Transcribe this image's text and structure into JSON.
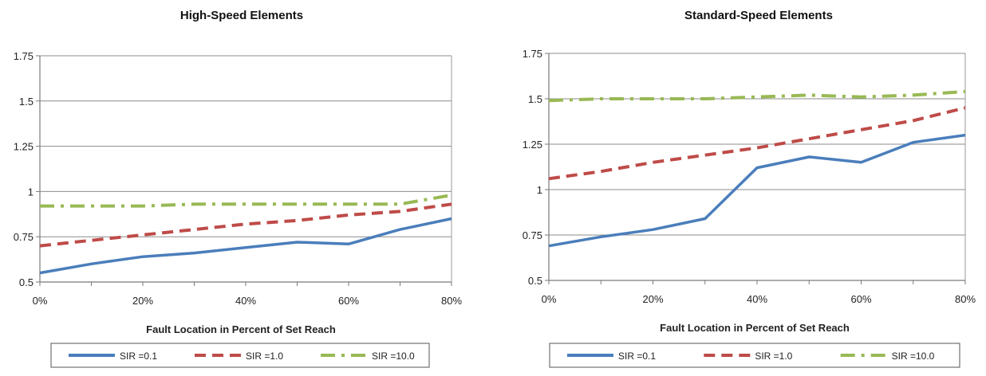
{
  "chart_data": [
    {
      "type": "line",
      "title": "High-Speed Elements",
      "xlabel": "Fault Location in Percent of Set Reach",
      "ylabel": "",
      "x": [
        0,
        10,
        20,
        30,
        40,
        50,
        60,
        70,
        80
      ],
      "x_tick_labels": [
        "0%",
        "20%",
        "40%",
        "60%",
        "80%"
      ],
      "x_ticks": [
        0,
        20,
        40,
        60,
        80
      ],
      "y_tick_labels": [
        "0.5",
        "0.75",
        "1",
        "1.25",
        "1.5",
        "1.75"
      ],
      "y_ticks": [
        0.5,
        0.75,
        1,
        1.25,
        1.5,
        1.75
      ],
      "xlim": [
        0,
        80
      ],
      "ylim": [
        0.5,
        1.75
      ],
      "grid": "horizontal",
      "legend_position": "bottom",
      "series": [
        {
          "name": "SIR =0.1",
          "color": "#4a7ebb",
          "style": "solid",
          "values": [
            0.55,
            0.6,
            0.64,
            0.66,
            0.69,
            0.72,
            0.71,
            0.79,
            0.85
          ]
        },
        {
          "name": "SIR =1.0",
          "color": "#be4b48",
          "style": "dashed",
          "values": [
            0.7,
            0.73,
            0.76,
            0.79,
            0.82,
            0.84,
            0.87,
            0.89,
            0.93
          ]
        },
        {
          "name": "SIR =10.0",
          "color": "#98b954",
          "style": "dashdot",
          "values": [
            0.92,
            0.92,
            0.92,
            0.93,
            0.93,
            0.93,
            0.93,
            0.93,
            0.98
          ]
        }
      ]
    },
    {
      "type": "line",
      "title": "Standard-Speed Elements",
      "xlabel": "Fault Location in Percent of Set Reach",
      "ylabel": "",
      "x": [
        0,
        10,
        20,
        30,
        40,
        50,
        60,
        70,
        80
      ],
      "x_tick_labels": [
        "0%",
        "20%",
        "40%",
        "60%",
        "80%"
      ],
      "x_ticks": [
        0,
        20,
        40,
        60,
        80
      ],
      "y_tick_labels": [
        "0.5",
        "0.75",
        "1",
        "1.25",
        "1.5",
        "1.75"
      ],
      "y_ticks": [
        0.5,
        0.75,
        1,
        1.25,
        1.5,
        1.75
      ],
      "xlim": [
        0,
        80
      ],
      "ylim": [
        0.5,
        1.75
      ],
      "grid": "horizontal",
      "legend_position": "bottom",
      "series": [
        {
          "name": "SIR =0.1",
          "color": "#4a7ebb",
          "style": "solid",
          "values": [
            0.69,
            0.74,
            0.78,
            0.84,
            1.12,
            1.18,
            1.15,
            1.26,
            1.3
          ]
        },
        {
          "name": "SIR =1.0",
          "color": "#be4b48",
          "style": "dashed",
          "values": [
            1.06,
            1.1,
            1.15,
            1.19,
            1.23,
            1.28,
            1.33,
            1.38,
            1.45
          ]
        },
        {
          "name": "SIR =10.0",
          "color": "#98b954",
          "style": "dashdot",
          "values": [
            1.49,
            1.5,
            1.5,
            1.5,
            1.51,
            1.52,
            1.51,
            1.52,
            1.54
          ]
        }
      ]
    }
  ]
}
